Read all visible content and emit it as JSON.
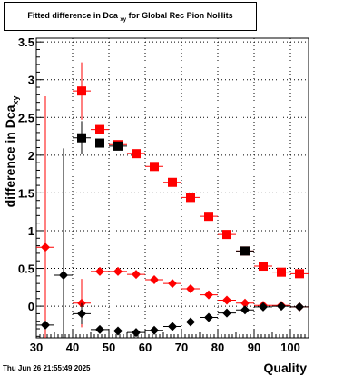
{
  "title": {
    "main": "Fitted difference in Dca",
    "sub": "xy",
    "rest": " for Global Rec Pion NoHits"
  },
  "footer": {
    "date": "Thu Jun 26 21:55:49 2025"
  },
  "colors": {
    "red": "#ff0000",
    "black": "#000000",
    "grid": "#000000"
  },
  "chart_data": {
    "type": "scatter",
    "xlabel": "Quality",
    "ylabel": "difference in Dca_{xy}",
    "xlim": [
      30,
      105
    ],
    "ylim": [
      -0.42,
      3.55
    ],
    "x_ticks": [
      30,
      40,
      50,
      60,
      70,
      80,
      90,
      100
    ],
    "y_ticks": [
      0,
      0.5,
      1,
      1.5,
      2,
      2.5,
      3,
      3.5
    ],
    "grid": true,
    "series": [
      {
        "color": "red",
        "marker": "square",
        "points": [
          {
            "x": 42.5,
            "y": 2.85,
            "yerr": 0.38
          },
          {
            "x": 47.5,
            "y": 2.34
          },
          {
            "x": 52.5,
            "y": 2.14
          },
          {
            "x": 57.5,
            "y": 2.02
          },
          {
            "x": 62.5,
            "y": 1.85
          },
          {
            "x": 67.5,
            "y": 1.64
          },
          {
            "x": 72.5,
            "y": 1.44
          },
          {
            "x": 77.5,
            "y": 1.19
          },
          {
            "x": 82.5,
            "y": 0.95
          },
          {
            "x": 87.5,
            "y": 0.73
          },
          {
            "x": 92.5,
            "y": 0.53
          },
          {
            "x": 97.5,
            "y": 0.45
          },
          {
            "x": 102.5,
            "y": 0.43
          }
        ]
      },
      {
        "color": "black",
        "marker": "square",
        "points": [
          {
            "x": 42.5,
            "y": 2.23,
            "yerr": 0.22
          },
          {
            "x": 47.5,
            "y": 2.16
          },
          {
            "x": 52.5,
            "y": 2.12
          },
          {
            "x": 87.5,
            "y": 0.73
          }
        ]
      },
      {
        "color": "red",
        "marker": "diamond",
        "points": [
          {
            "x": 32.5,
            "y": 0.78,
            "yerr": 2.0
          },
          {
            "x": 42.5,
            "y": 0.04,
            "yerr": 0.32
          },
          {
            "x": 47.5,
            "y": 0.46
          },
          {
            "x": 52.5,
            "y": 0.46
          },
          {
            "x": 57.5,
            "y": 0.42
          },
          {
            "x": 62.5,
            "y": 0.35
          },
          {
            "x": 67.5,
            "y": 0.3
          },
          {
            "x": 72.5,
            "y": 0.23
          },
          {
            "x": 77.5,
            "y": 0.15
          },
          {
            "x": 82.5,
            "y": 0.08
          },
          {
            "x": 87.5,
            "y": 0.04
          },
          {
            "x": 92.5,
            "y": 0.01
          },
          {
            "x": 97.5,
            "y": 0.01
          },
          {
            "x": 102.5,
            "y": -0.01
          }
        ]
      },
      {
        "color": "black",
        "marker": "diamond",
        "points": [
          {
            "x": 32.5,
            "y": -0.25
          },
          {
            "x": 37.5,
            "y": 0.41,
            "yerr": 1.68
          },
          {
            "x": 42.5,
            "y": -0.1,
            "yerr": 0.14
          },
          {
            "x": 47.5,
            "y": -0.31
          },
          {
            "x": 52.5,
            "y": -0.33
          },
          {
            "x": 57.5,
            "y": -0.35
          },
          {
            "x": 62.5,
            "y": -0.32
          },
          {
            "x": 67.5,
            "y": -0.27
          },
          {
            "x": 72.5,
            "y": -0.21
          },
          {
            "x": 77.5,
            "y": -0.15
          },
          {
            "x": 82.5,
            "y": -0.09
          },
          {
            "x": 87.5,
            "y": -0.05
          },
          {
            "x": 92.5,
            "y": -0.01
          },
          {
            "x": 97.5,
            "y": 0.0
          },
          {
            "x": 102.5,
            "y": -0.01
          }
        ]
      }
    ]
  }
}
